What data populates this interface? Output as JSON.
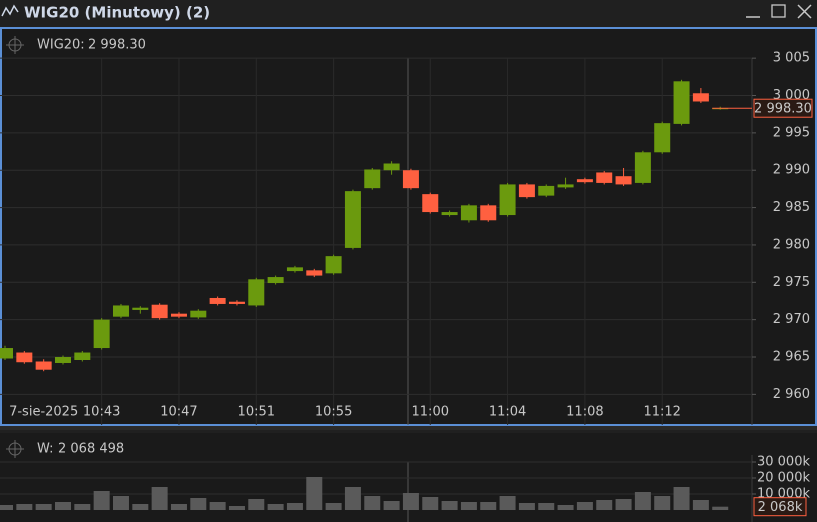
{
  "window": {
    "title": "WIG20 (Minutowy) (2)"
  },
  "chart_data": [
    {
      "type": "candlestick",
      "series": [
        {
          "name": "WIG20:",
          "up_color": "#6b9a0e",
          "down_color": "#ff6040",
          "open": [
            2964.8,
            2965.6,
            2964.4,
            2964.2,
            2964.6,
            2966.2,
            2970.4,
            2971.3,
            2972.0,
            2970.8,
            2970.3,
            2972.9,
            2972.4,
            2971.9,
            2974.9,
            2976.5,
            2976.6,
            2976.2,
            2979.6,
            2987.6,
            2990.0,
            2990.0,
            2986.8,
            2984.0,
            2983.3,
            2985.3,
            2984.0,
            2988.1,
            2986.6,
            2987.7,
            2988.8,
            2989.7,
            2989.2,
            2988.3,
            2992.4,
            2996.2,
            3000.3,
            2998.3
          ],
          "high": [
            2966.5,
            2965.8,
            2964.7,
            2965.2,
            2965.8,
            2970.2,
            2972.1,
            2971.8,
            2972.2,
            2971.0,
            2971.4,
            2973.1,
            2972.6,
            2975.6,
            2975.9,
            2977.2,
            2976.8,
            2978.7,
            2987.4,
            2990.3,
            2991.2,
            2990.2,
            2987.0,
            2984.6,
            2985.5,
            2985.5,
            2988.3,
            2988.3,
            2988.1,
            2989.0,
            2989.0,
            2989.9,
            2990.3,
            2992.6,
            2996.5,
            3002.1,
            3001.0,
            2998.5
          ],
          "low": [
            2964.6,
            2964.1,
            2963.1,
            2964.0,
            2964.4,
            2966.0,
            2970.2,
            2970.8,
            2970.0,
            2970.2,
            2970.1,
            2971.9,
            2971.9,
            2971.7,
            2974.7,
            2976.3,
            2975.7,
            2976.0,
            2979.4,
            2987.4,
            2989.4,
            2987.4,
            2984.2,
            2983.8,
            2983.0,
            2983.1,
            2983.8,
            2986.2,
            2986.4,
            2987.5,
            2988.2,
            2988.1,
            2987.9,
            2988.1,
            2992.2,
            2996.0,
            2999.0,
            2998.1
          ],
          "close": [
            2966.2,
            2964.3,
            2963.3,
            2965.0,
            2965.6,
            2970.0,
            2971.9,
            2971.6,
            2970.2,
            2970.4,
            2971.2,
            2972.1,
            2972.1,
            2975.4,
            2975.7,
            2977.0,
            2975.9,
            2978.5,
            2987.2,
            2990.1,
            2990.9,
            2987.6,
            2984.4,
            2984.4,
            2985.3,
            2983.3,
            2988.1,
            2986.4,
            2987.9,
            2988.1,
            2988.4,
            2988.3,
            2988.1,
            2992.4,
            2996.3,
            3001.9,
            2999.2,
            2998.3
          ]
        }
      ],
      "categories": [
        null,
        null,
        "7-sie-2025",
        null,
        null,
        "10:43",
        null,
        null,
        null,
        "10:47",
        null,
        null,
        null,
        "10:51",
        null,
        null,
        null,
        "10:55",
        null,
        null,
        null,
        null,
        "11:00",
        null,
        null,
        null,
        "11:04",
        null,
        null,
        null,
        "11:08",
        null,
        null,
        null,
        "11:12",
        null,
        null,
        null
      ],
      "last_price": {
        "value": 2998.3,
        "label": "2 998.30"
      },
      "last_color": "#ff6040",
      "ylim": [
        2955.9,
        3008.5
      ],
      "yticks": [
        {
          "value": 2960,
          "label": "2 960"
        },
        {
          "value": 2965,
          "label": "2 965"
        },
        {
          "value": 2970,
          "label": "2 970"
        },
        {
          "value": 2975,
          "label": "2 975"
        },
        {
          "value": 2980,
          "label": "2 980"
        },
        {
          "value": 2985,
          "label": "2 985"
        },
        {
          "value": 2990,
          "label": "2 990"
        },
        {
          "value": 2995,
          "label": "2 995"
        },
        {
          "value": 3000,
          "label": "3 000"
        },
        {
          "value": 3005,
          "label": "3 005"
        }
      ],
      "grid": true
    },
    {
      "type": "bar",
      "series": [
        {
          "name": "W:",
          "color": "#5a5a5a",
          "values": [
            3125000,
            3750000,
            3750000,
            5000000,
            3750000,
            11875000,
            8750000,
            3750000,
            14375000,
            3750000,
            7500000,
            5000000,
            2500000,
            6875000,
            3750000,
            4375000,
            20625000,
            4375000,
            14375000,
            8750000,
            5625000,
            10625000,
            8125000,
            5625000,
            5000000,
            5000000,
            8750000,
            4375000,
            4375000,
            3125000,
            5000000,
            6250000,
            6875000,
            11250000,
            8750000,
            14375000,
            6250000,
            2068498
          ]
        }
      ],
      "last_volume": {
        "value": 2068498,
        "label": "2 068 498"
      },
      "last_volume_tag": {
        "value": 2068498,
        "label": "2 068k"
      },
      "last_color": "#ff6040",
      "ylim": [
        0,
        33125000
      ],
      "yticks": [
        {
          "value": 10000000,
          "label": "10 000k"
        },
        {
          "value": 20000000,
          "label": "20 000k"
        },
        {
          "value": 30000000,
          "label": "30 000k"
        }
      ],
      "grid": true
    }
  ]
}
